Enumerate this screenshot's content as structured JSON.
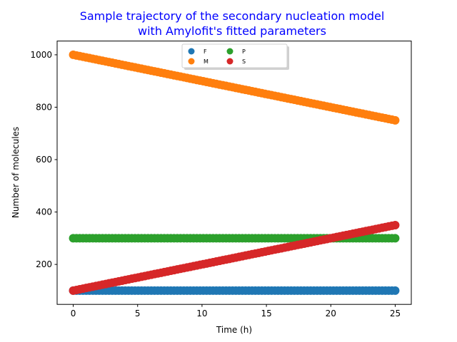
{
  "chart_data": {
    "type": "scatter",
    "title_lines": [
      "Sample trajectory of the secondary nucleation model",
      "with Amylofit's fitted parameters"
    ],
    "title_color": "#0000ff",
    "xlabel": "Time (h)",
    "ylabel": "Number of molecules",
    "xlim": [
      -1.25,
      26.25
    ],
    "ylim": [
      47.5,
      1052.5
    ],
    "xticks": [
      0,
      5,
      10,
      15,
      20,
      25
    ],
    "yticks": [
      200,
      400,
      600,
      800,
      1000
    ],
    "grid": false,
    "legend_position": "upper-center",
    "legend_columns": 3,
    "x_range": [
      0,
      25
    ],
    "points_per_series": 100,
    "series": [
      {
        "name": "F",
        "color": "#1f77b4",
        "y_start": 100,
        "y_end": 100
      },
      {
        "name": "M",
        "color": "#ff7f0e",
        "y_start": 1000,
        "y_end": 750
      },
      {
        "name": "P",
        "color": "#2ca02c",
        "y_start": 300,
        "y_end": 300
      },
      {
        "name": "S",
        "color": "#d62728",
        "y_start": 100,
        "y_end": 350
      }
    ]
  }
}
